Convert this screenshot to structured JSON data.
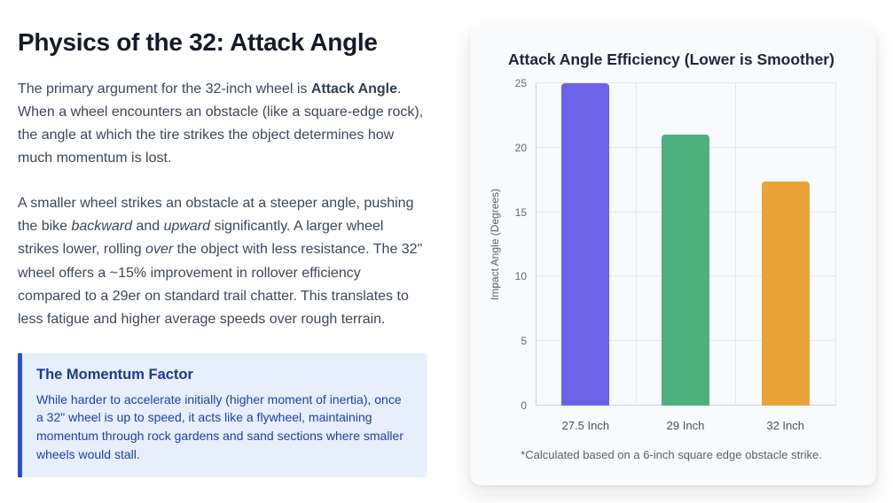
{
  "article": {
    "title": "Physics of the 32: Attack Angle",
    "para1": {
      "lead": "The primary argument for the 32-inch wheel is ",
      "bold": "Attack Angle",
      "rest": ". When a wheel encounters an obstacle (like a square-edge rock), the angle at which the tire strikes the object determines how much momentum is lost."
    },
    "para2": {
      "s1": "A smaller wheel strikes an obstacle at a steeper angle, pushing the bike ",
      "i1": "backward",
      "s2": " and ",
      "i2": "upward",
      "s3": " significantly. A larger wheel strikes lower, rolling ",
      "i3": "over",
      "s4": " the object with less resistance. The 32\" wheel offers a ~15% improvement in rollover efficiency compared to a 29er on standard trail chatter. This translates to less fatigue and higher average speeds over rough terrain."
    },
    "callout": {
      "title": "The Momentum Factor",
      "body": "While harder to accelerate initially (higher moment of inertia), once a 32\" wheel is up to speed, it acts like a flywheel, maintaining momentum through rock gardens and sand sections where smaller wheels would stall."
    }
  },
  "chart_data": {
    "type": "bar",
    "title": "Attack Angle Efficiency (Lower is Smoother)",
    "categories": [
      "27.5 Inch",
      "29 Inch",
      "32 Inch"
    ],
    "values": [
      25,
      21,
      17.4
    ],
    "colors": [
      "#6a63e8",
      "#4cb17e",
      "#e9a33a"
    ],
    "ylabel": "Impact Angle (Degrees)",
    "xlabel": "",
    "ylim": [
      0,
      25
    ],
    "yticks": [
      0,
      5,
      10,
      15,
      20,
      25
    ],
    "grid": true,
    "legend": false,
    "footnote": "*Calculated based on a 6-inch square edge obstacle strike."
  }
}
